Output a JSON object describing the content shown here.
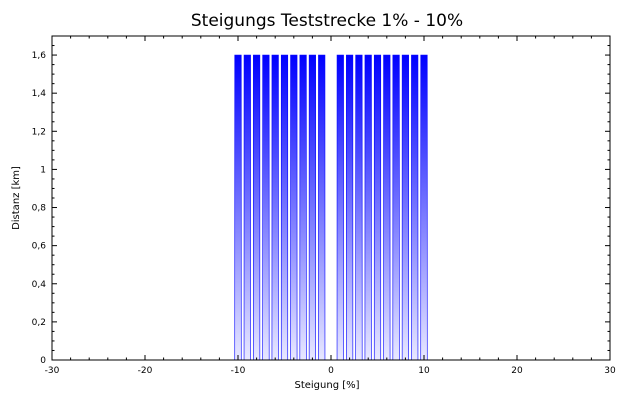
{
  "chart_data": {
    "type": "bar",
    "title": "Steigungs Teststrecke 1% - 10%",
    "xlabel": "Steigung [%]",
    "ylabel": "Distanz [km]",
    "xlim": [
      -30,
      30
    ],
    "ylim": [
      0,
      1.7
    ],
    "x_ticks": [
      "-30",
      "-20",
      "-10",
      "0",
      "10",
      "20",
      "30"
    ],
    "y_ticks": [
      "0",
      "0,2",
      "0,4",
      "0,6",
      "0,8",
      "1",
      "1,2",
      "1,4",
      "1,6"
    ],
    "grid": false,
    "legend": "none",
    "bar_width": 0.7,
    "colors": {
      "bar_top": "#0000ff",
      "bar_bottom": "#e8e8ff",
      "axis": "#000000"
    },
    "x": [
      -10,
      -9,
      -8,
      -7,
      -6,
      -5,
      -4,
      -3,
      -2,
      -1,
      1,
      2,
      3,
      4,
      5,
      6,
      7,
      8,
      9,
      10
    ],
    "values": [
      1.6,
      1.6,
      1.6,
      1.6,
      1.6,
      1.6,
      1.6,
      1.6,
      1.6,
      1.6,
      1.6,
      1.6,
      1.6,
      1.6,
      1.6,
      1.6,
      1.6,
      1.6,
      1.6,
      1.6
    ]
  }
}
